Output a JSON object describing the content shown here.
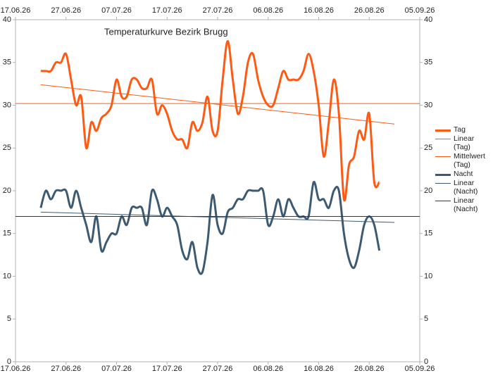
{
  "chart_data": {
    "type": "line",
    "title": "Temperaturkurve Bezirk Brugg",
    "x": [
      "2026-06-22",
      "2026-06-23",
      "2026-06-24",
      "2026-06-25",
      "2026-06-26",
      "2026-06-27",
      "2026-06-28",
      "2026-06-29",
      "2026-06-30",
      "2026-07-01",
      "2026-07-02",
      "2026-07-03",
      "2026-07-04",
      "2026-07-05",
      "2026-07-06",
      "2026-07-07",
      "2026-07-08",
      "2026-07-09",
      "2026-07-10",
      "2026-07-11",
      "2026-07-12",
      "2026-07-13",
      "2026-07-14",
      "2026-07-15",
      "2026-07-16",
      "2026-07-17",
      "2026-07-18",
      "2026-07-19",
      "2026-07-20",
      "2026-07-21",
      "2026-07-22",
      "2026-07-23",
      "2026-07-24",
      "2026-07-25",
      "2026-07-26",
      "2026-07-27",
      "2026-07-28",
      "2026-07-29",
      "2026-07-30",
      "2026-07-31",
      "2026-08-01",
      "2026-08-02",
      "2026-08-03",
      "2026-08-04",
      "2026-08-05",
      "2026-08-06",
      "2026-08-07",
      "2026-08-08",
      "2026-08-09",
      "2026-08-10",
      "2026-08-11",
      "2026-08-12",
      "2026-08-13",
      "2026-08-14",
      "2026-08-15",
      "2026-08-16",
      "2026-08-17",
      "2026-08-18",
      "2026-08-19",
      "2026-08-20",
      "2026-08-21",
      "2026-08-22",
      "2026-08-23",
      "2026-08-24",
      "2026-08-25",
      "2026-08-26",
      "2026-08-27",
      "2026-08-28"
    ],
    "series": [
      {
        "name": "Tag",
        "color": "#ff5a14",
        "width": 3,
        "smooth": true,
        "values": [
          34,
          34,
          34,
          35,
          35,
          36,
          33,
          30,
          31,
          25,
          28,
          27,
          28.5,
          29,
          30,
          33,
          31,
          31,
          33,
          33,
          32,
          32,
          33,
          29,
          30,
          29,
          27,
          26,
          26,
          25,
          28,
          27,
          28,
          31,
          27,
          27,
          33,
          37.5,
          33,
          29,
          31,
          35,
          36,
          33,
          31,
          30,
          30,
          32,
          34,
          33,
          33,
          33,
          34,
          36,
          34,
          30,
          24,
          28,
          33,
          29,
          19,
          23,
          24,
          27,
          26,
          29,
          21,
          21
        ]
      },
      {
        "name": "Linear (Tag)",
        "color": "#ff5a14",
        "width": 1,
        "x": [
          "2026-06-22",
          "2026-08-31"
        ],
        "values": [
          32.4,
          27.8
        ]
      },
      {
        "name": "Mittelwert (Tag)",
        "color": "#ff5a14",
        "width": 1,
        "x": [
          "2026-06-17",
          "2026-09-05"
        ],
        "values": [
          30.2,
          30.2
        ]
      },
      {
        "name": "Nacht",
        "color": "#3d5a73",
        "width": 3,
        "smooth": true,
        "values": [
          18,
          20,
          19,
          20,
          20,
          20,
          18,
          20,
          18,
          16,
          14,
          17,
          13,
          14,
          15,
          15,
          17,
          16,
          18,
          18,
          18,
          16,
          20,
          19,
          17,
          18,
          17,
          16,
          13,
          12,
          14,
          11,
          10.5,
          14,
          19.5,
          16,
          15,
          17.5,
          18,
          19,
          19,
          20,
          20,
          20,
          20,
          16,
          17,
          19,
          17,
          19,
          18,
          17,
          17,
          17,
          21,
          19,
          19,
          18,
          20,
          20,
          15,
          12,
          11,
          13,
          16,
          17,
          16,
          13
        ]
      },
      {
        "name": "Linear (Nacht)",
        "color": "#3d5a73",
        "width": 1,
        "x": [
          "2026-06-22",
          "2026-08-31"
        ],
        "values": [
          17.5,
          16.3
        ]
      },
      {
        "name": "Linear (Nacht)",
        "color": "#1e3f5a",
        "width": 1,
        "x": [
          "2026-06-17",
          "2026-09-05"
        ],
        "values": [
          17,
          17
        ]
      }
    ],
    "xlim": [
      "2026-06-17",
      "2026-09-05"
    ],
    "xticks": [
      {
        "value": "2026-06-17",
        "label": "17.06.26"
      },
      {
        "value": "2026-06-27",
        "label": "27.06.26"
      },
      {
        "value": "2026-07-07",
        "label": "07.07.26"
      },
      {
        "value": "2026-07-17",
        "label": "17.07.26"
      },
      {
        "value": "2026-07-27",
        "label": "27.07.26"
      },
      {
        "value": "2026-08-06",
        "label": "06.08.26"
      },
      {
        "value": "2026-08-16",
        "label": "16.08.26"
      },
      {
        "value": "2026-08-26",
        "label": "26.08.26"
      },
      {
        "value": "2026-09-05",
        "label": "05.09.26"
      }
    ],
    "ylim": [
      0,
      40
    ],
    "yticks": [
      0,
      5,
      10,
      15,
      20,
      25,
      30,
      35,
      40
    ],
    "grid": false,
    "legend": "right"
  }
}
